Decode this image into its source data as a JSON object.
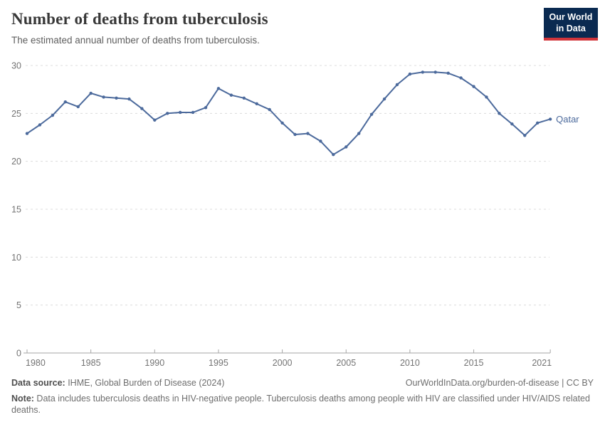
{
  "header": {
    "title": "Number of deaths from tuberculosis",
    "subtitle": "The estimated annual number of deaths from tuberculosis.",
    "logo_line1": "Our World",
    "logo_line2": "in Data"
  },
  "chart_data": {
    "type": "line",
    "title": "Number of deaths from tuberculosis",
    "xlabel": "",
    "ylabel": "",
    "ylim": [
      0,
      30
    ],
    "yticks": [
      0,
      5,
      10,
      15,
      20,
      25,
      30
    ],
    "xticks": [
      1980,
      1985,
      1990,
      1995,
      2000,
      2005,
      2010,
      2015,
      2021
    ],
    "grid": "horizontal-dashed",
    "legend_position": "end-of-line",
    "x": [
      1980,
      1981,
      1982,
      1983,
      1984,
      1985,
      1986,
      1987,
      1988,
      1989,
      1990,
      1991,
      1992,
      1993,
      1994,
      1995,
      1996,
      1997,
      1998,
      1999,
      2000,
      2001,
      2002,
      2003,
      2004,
      2005,
      2006,
      2007,
      2008,
      2009,
      2010,
      2011,
      2012,
      2013,
      2014,
      2015,
      2016,
      2017,
      2018,
      2019,
      2020,
      2021
    ],
    "series": [
      {
        "name": "Qatar",
        "color": "#4c6a9c",
        "values": [
          22.9,
          23.8,
          24.8,
          26.2,
          25.7,
          27.1,
          26.7,
          26.6,
          26.5,
          25.5,
          24.3,
          25.0,
          25.1,
          25.1,
          25.6,
          27.6,
          26.9,
          26.6,
          26.0,
          25.4,
          24.0,
          22.8,
          22.9,
          22.1,
          20.7,
          21.5,
          22.9,
          24.9,
          26.5,
          28.0,
          29.1,
          29.3,
          29.3,
          29.2,
          28.7,
          27.8,
          26.7,
          25.0,
          23.9,
          22.7,
          24.0,
          24.4
        ]
      }
    ]
  },
  "footer": {
    "source_label": "Data source:",
    "source_text": " IHME, Global Burden of Disease (2024)",
    "link_text": "OurWorldInData.org/burden-of-disease | CC BY",
    "note_label": "Note:",
    "note_text": " Data includes tuberculosis deaths in HIV-negative people. Tuberculosis deaths among people with HIV are classified under HIV/AIDS related deaths."
  },
  "colors": {
    "line": "#4c6a9c",
    "grid": "#dcdcdc",
    "axis": "#a5a5a5",
    "logo_bg": "#0a2a51",
    "logo_red": "#d1353b"
  }
}
